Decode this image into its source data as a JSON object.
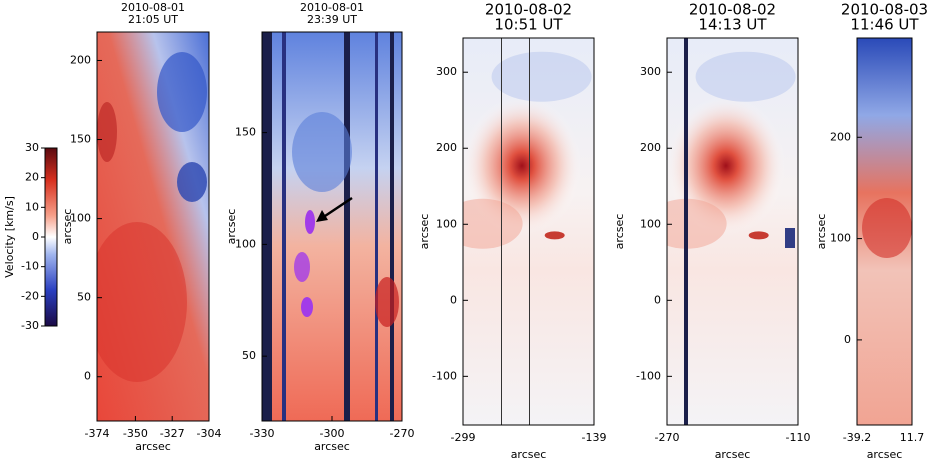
{
  "chart_data": [
    {
      "type": "colorbar",
      "ylabel": "Velocity [km/s]",
      "ylim": [
        -30,
        30
      ],
      "yticks": [
        -30,
        -20,
        -10,
        0,
        10,
        20,
        30
      ]
    },
    {
      "type": "image",
      "title": "2010-08-01",
      "subtitle": "21:05 UT",
      "xlabel": "arcsec",
      "ylabel": "arcsec",
      "xlim": [
        -374,
        -304
      ],
      "ylim": [
        -28,
        218
      ],
      "xticks": [
        -374,
        -350,
        -327,
        -304
      ],
      "yticks": [
        0,
        50,
        100,
        150,
        200
      ]
    },
    {
      "type": "image",
      "title": "2010-08-01",
      "subtitle": "23:39 UT",
      "xlabel": "arcsec",
      "ylabel": "arcsec",
      "xlim": [
        -330,
        -270
      ],
      "ylim": [
        21,
        195
      ],
      "xticks": [
        -330,
        -300,
        -270
      ],
      "yticks": [
        50,
        100,
        150
      ]
    },
    {
      "type": "image",
      "title": "2010-08-02",
      "subtitle": "10:51 UT",
      "xlabel": "arcsec",
      "ylabel": "arcsec",
      "xlim": [
        -299,
        -139
      ],
      "ylim": [
        -164,
        345
      ],
      "xticks": [
        -299,
        -139
      ],
      "yticks": [
        -100,
        0,
        100,
        200,
        300
      ]
    },
    {
      "type": "image",
      "title": "2010-08-02",
      "subtitle": "14:13 UT",
      "xlabel": "arcsec",
      "ylabel": "arcsec",
      "xlim": [
        -270,
        -110
      ],
      "ylim": [
        -164,
        345
      ],
      "xticks": [
        -270,
        -110
      ],
      "yticks": [
        -100,
        0,
        100,
        200,
        300
      ]
    },
    {
      "type": "image",
      "title": "2010-08-03",
      "subtitle": "11:46 UT",
      "xlabel": "arcsec",
      "ylabel": "arcsec",
      "xlim": [
        -39.2,
        11.7
      ],
      "ylim": [
        -84,
        298
      ],
      "xticks": [
        -39.2,
        11.7
      ],
      "yticks": [
        0,
        100,
        200
      ]
    }
  ]
}
